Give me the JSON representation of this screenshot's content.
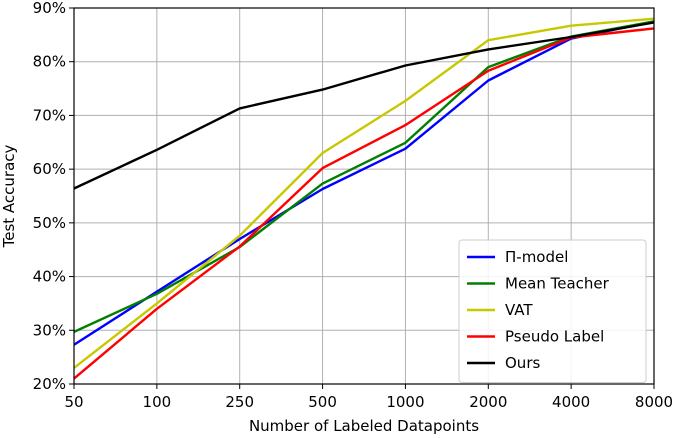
{
  "chart_data": {
    "type": "line",
    "xlabel": "Number of Labeled Datapoints",
    "ylabel": "Test Accuracy",
    "categories": [
      "50",
      "100",
      "250",
      "500",
      "1000",
      "2000",
      "4000",
      "8000"
    ],
    "y_ticks": [
      "20%",
      "30%",
      "40%",
      "50%",
      "60%",
      "70%",
      "80%",
      "90%"
    ],
    "ylim": [
      20,
      90
    ],
    "grid": true,
    "legend_position": "lower-right",
    "series": [
      {
        "name": "Π-model",
        "color": "#0000ff",
        "values": [
          27.3,
          37.2,
          47.0,
          56.3,
          63.8,
          76.5,
          84.3,
          87.5
        ]
      },
      {
        "name": "Mean Teacher",
        "color": "#008000",
        "values": [
          29.7,
          36.8,
          45.5,
          57.3,
          64.9,
          79.0,
          84.7,
          87.5
        ]
      },
      {
        "name": "VAT",
        "color": "#c8c800",
        "values": [
          23.0,
          35.0,
          47.6,
          63.0,
          72.7,
          84.0,
          86.7,
          88.0
        ]
      },
      {
        "name": "Pseudo Label",
        "color": "#ff0000",
        "values": [
          21.0,
          34.0,
          45.6,
          60.2,
          68.2,
          78.3,
          84.5,
          86.2
        ]
      },
      {
        "name": "Ours",
        "color": "#000000",
        "values": [
          56.4,
          63.6,
          71.3,
          74.8,
          79.3,
          82.3,
          84.6,
          87.3
        ]
      }
    ]
  }
}
